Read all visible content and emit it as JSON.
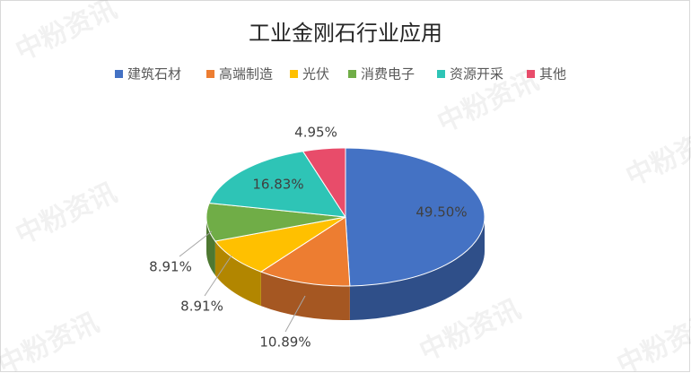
{
  "chart_data": {
    "type": "pie",
    "title": "工业金刚石行业应用",
    "watermark": "中粉资讯",
    "categories": [
      "建筑石材",
      "高端制造",
      "光伏",
      "消费电子",
      "资源开采",
      "其他"
    ],
    "values": [
      49.5,
      10.89,
      8.91,
      8.91,
      16.83,
      4.95
    ],
    "value_labels": [
      "49.50%",
      "10.89%",
      "8.91%",
      "8.91%",
      "16.83%",
      "4.95%"
    ],
    "colors": [
      "#4472c4",
      "#ed7d31",
      "#ffc000",
      "#70ad47",
      "#2ec4b6",
      "#e84c6a"
    ],
    "legend": "top"
  }
}
